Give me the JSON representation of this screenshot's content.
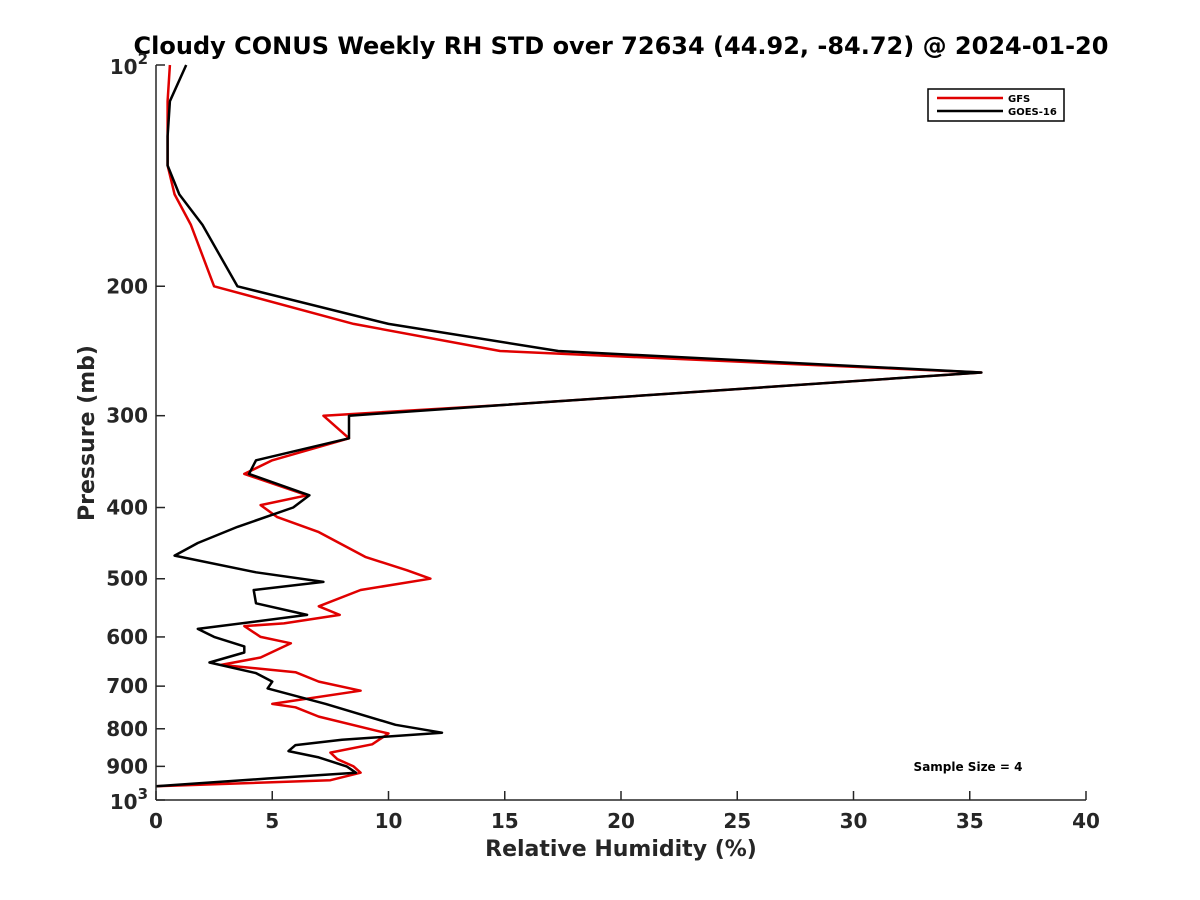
{
  "chart_data": {
    "type": "line",
    "title": "Cloudy CONUS Weekly RH STD over 72634 (44.92, -84.72) @ 2024-01-20",
    "xlabel": "Relative Humidity (%)",
    "ylabel": "Pressure (mb)",
    "xlim": [
      0,
      40
    ],
    "ylim": [
      100,
      1000
    ],
    "y_scale": "log",
    "y_reversed": true,
    "x_ticks": [
      "0",
      "5",
      "10",
      "15",
      "20",
      "25",
      "30",
      "35",
      "40"
    ],
    "y_ticks": [
      {
        "value": 200,
        "label": "200"
      },
      {
        "value": 300,
        "label": "300"
      },
      {
        "value": 400,
        "label": "400"
      },
      {
        "value": 500,
        "label": "500"
      },
      {
        "value": 600,
        "label": "600"
      },
      {
        "value": 700,
        "label": "700"
      },
      {
        "value": 800,
        "label": "800"
      },
      {
        "value": 900,
        "label": "900"
      }
    ],
    "y_end_labels": {
      "top_base": "10",
      "top_exp": "2",
      "bottom_base": "10",
      "bottom_exp": "3"
    },
    "legend_position": "top-right",
    "annotation": "Sample Size = 4",
    "series": [
      {
        "name": "GFS",
        "color": "#e00000",
        "points": [
          [
            0.6,
            100
          ],
          [
            0.5,
            112
          ],
          [
            0.5,
            125
          ],
          [
            0.5,
            137
          ],
          [
            0.8,
            150
          ],
          [
            1.5,
            165
          ],
          [
            2.5,
            200
          ],
          [
            8.5,
            225
          ],
          [
            14.8,
            245
          ],
          [
            35.5,
            262
          ],
          [
            15,
            290
          ],
          [
            7.2,
            300
          ],
          [
            8.3,
            322
          ],
          [
            5,
            345
          ],
          [
            3.8,
            360
          ],
          [
            6.5,
            385
          ],
          [
            4.5,
            397
          ],
          [
            5.2,
            412
          ],
          [
            7,
            432
          ],
          [
            9,
            467
          ],
          [
            10.8,
            487
          ],
          [
            11.8,
            500
          ],
          [
            8.8,
            518
          ],
          [
            7,
            545
          ],
          [
            7.9,
            560
          ],
          [
            5.5,
            575
          ],
          [
            3.8,
            580
          ],
          [
            4.5,
            600
          ],
          [
            5.8,
            612
          ],
          [
            4.5,
            640
          ],
          [
            2.8,
            655
          ],
          [
            6,
            670
          ],
          [
            7,
            690
          ],
          [
            8.8,
            710
          ],
          [
            5,
            740
          ],
          [
            6,
            748
          ],
          [
            7,
            770
          ],
          [
            9.5,
            805
          ],
          [
            10,
            812
          ],
          [
            9.3,
            840
          ],
          [
            7.5,
            862
          ],
          [
            7.8,
            880
          ],
          [
            8.5,
            900
          ],
          [
            8.8,
            918
          ],
          [
            7.5,
            940
          ],
          [
            0,
            958
          ]
        ]
      },
      {
        "name": "GOES-16",
        "color": "#000000",
        "points": [
          [
            1.3,
            100
          ],
          [
            0.6,
            112
          ],
          [
            0.5,
            125
          ],
          [
            0.5,
            137
          ],
          [
            1,
            150
          ],
          [
            2,
            165
          ],
          [
            3.5,
            200
          ],
          [
            10,
            225
          ],
          [
            17.3,
            245
          ],
          [
            35.5,
            262
          ],
          [
            15,
            290
          ],
          [
            8.3,
            300
          ],
          [
            8.3,
            322
          ],
          [
            4.3,
            345
          ],
          [
            4,
            360
          ],
          [
            6.6,
            385
          ],
          [
            5.9,
            400
          ],
          [
            3.5,
            425
          ],
          [
            1.8,
            447
          ],
          [
            0.8,
            465
          ],
          [
            4.3,
            490
          ],
          [
            7.2,
            505
          ],
          [
            4.2,
            518
          ],
          [
            4.3,
            540
          ],
          [
            6.5,
            560
          ],
          [
            1.8,
            585
          ],
          [
            2.5,
            600
          ],
          [
            3.8,
            618
          ],
          [
            3.8,
            630
          ],
          [
            2.3,
            650
          ],
          [
            4.3,
            672
          ],
          [
            5,
            690
          ],
          [
            4.8,
            705
          ],
          [
            7.3,
            740
          ],
          [
            10.3,
            790
          ],
          [
            12.3,
            810
          ],
          [
            8,
            828
          ],
          [
            6,
            842
          ],
          [
            5.7,
            858
          ],
          [
            7,
            875
          ],
          [
            8.2,
            900
          ],
          [
            8.6,
            918
          ],
          [
            4.8,
            935
          ],
          [
            0,
            958
          ]
        ]
      }
    ]
  }
}
